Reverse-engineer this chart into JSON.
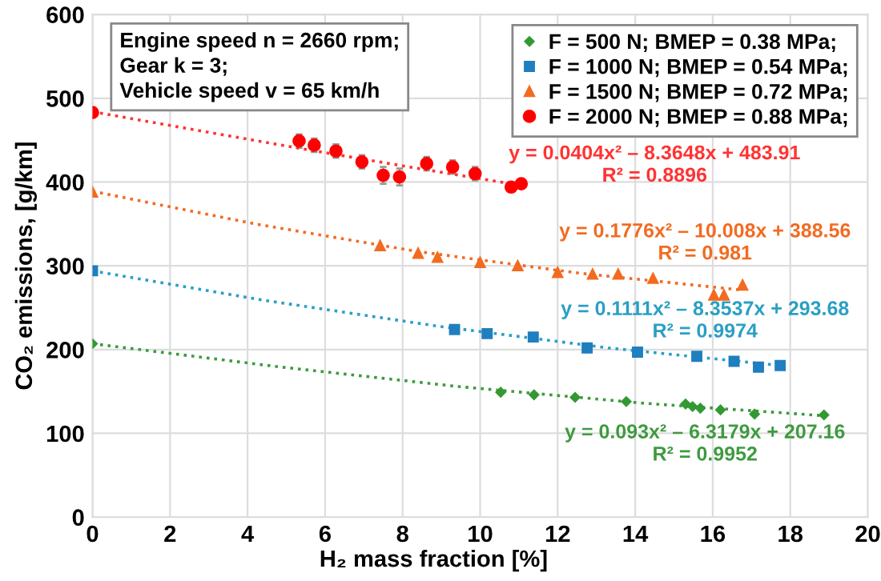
{
  "chart_data": {
    "type": "scatter",
    "xlabel": "H₂ mass fraction [%]",
    "ylabel": "CO₂ emissions, [g/km]",
    "xlim": [
      0,
      20
    ],
    "ylim": [
      0,
      600
    ],
    "xticks": [
      0,
      2,
      4,
      6,
      8,
      10,
      12,
      14,
      16,
      18,
      20
    ],
    "yticks": [
      0,
      100,
      200,
      300,
      400,
      500,
      600
    ],
    "grid": true,
    "legend": "top right",
    "line_style": "dotted",
    "series": [
      {
        "name": "F = 500 N; BMEP = 0.38 MPa;",
        "color": "#339933",
        "marker": "diamond",
        "x": [
          0,
          10.53,
          11.39,
          12.45,
          13.77,
          15.3,
          15.48,
          15.68,
          16.2,
          17.08,
          18.87
        ],
        "values": [
          207,
          149,
          146,
          143,
          138,
          135,
          132,
          130,
          128,
          123,
          122
        ]
      },
      {
        "name": "F = 1000 N; BMEP = 0.54 MPa;",
        "color": "#1f7fbf",
        "marker": "square",
        "x": [
          0,
          9.34,
          10.18,
          11.37,
          12.76,
          14.06,
          15.59,
          16.55,
          17.18,
          17.74
        ],
        "values": [
          294,
          224,
          219,
          215,
          202,
          197,
          192,
          186,
          179,
          181
        ]
      },
      {
        "name": "F = 1500 N; BMEP = 0.72 MPa;",
        "color": "#f26b21",
        "marker": "triangle",
        "x": [
          0,
          7.42,
          8.4,
          8.9,
          10.0,
          10.97,
          12.0,
          12.9,
          13.56,
          14.46,
          16.03,
          16.29,
          16.77
        ],
        "values": [
          388,
          324,
          315,
          310,
          304,
          300,
          292,
          290,
          290,
          285,
          265,
          265,
          277
        ]
      },
      {
        "name": "F = 2000 N; BMEP = 0.88 MPa;",
        "color": "#ff0000",
        "marker": "circle",
        "x": [
          0,
          5.33,
          5.72,
          6.28,
          6.95,
          7.5,
          7.92,
          8.62,
          9.29,
          9.87,
          10.8,
          11.06
        ],
        "values": [
          483,
          449,
          444,
          437,
          424,
          408,
          406,
          422,
          418,
          410,
          394,
          398
        ],
        "errors": [
          null,
          8,
          8,
          8,
          8,
          10,
          10,
          8,
          8,
          8,
          null,
          null
        ]
      },
      {
        "type": "line",
        "color": "#3f9a3f",
        "x": [
          0,
          4.7,
          9.4,
          14.2,
          18.87
        ],
        "values": [
          207,
          180,
          156,
          136,
          121
        ]
      },
      {
        "type": "line",
        "color": "#2a9fc4",
        "x": [
          0,
          4.4,
          8.9,
          13.3,
          17.74
        ],
        "values": [
          294,
          259,
          228,
          202,
          181
        ]
      },
      {
        "type": "line",
        "color": "#f26b21",
        "x": [
          0,
          4.2,
          8.4,
          12.6,
          16.77
        ],
        "values": [
          389,
          350,
          317,
          291,
          271
        ]
      },
      {
        "type": "line",
        "color": "#ff3333",
        "x": [
          0,
          2.8,
          5.5,
          8.3,
          11.06
        ],
        "values": [
          484,
          461,
          439,
          417,
          396
        ]
      }
    ],
    "annotations": [
      "Engine speed n = 2660 rpm;",
      "Gear k = 3;",
      "Vehicle speed v = 65 km/h",
      "y = 0.093x² – 6.3179x + 207.16\nR² = 0.9952",
      "y = 0.1111x² – 8.3537x + 293.68\nR² = 0.9974",
      "y = 0.1776x² – 10.008x + 388.56\nR² = 0.981",
      "y = 0.0404x² – 8.3648x + 483.91\nR² = 0.8896"
    ]
  }
}
